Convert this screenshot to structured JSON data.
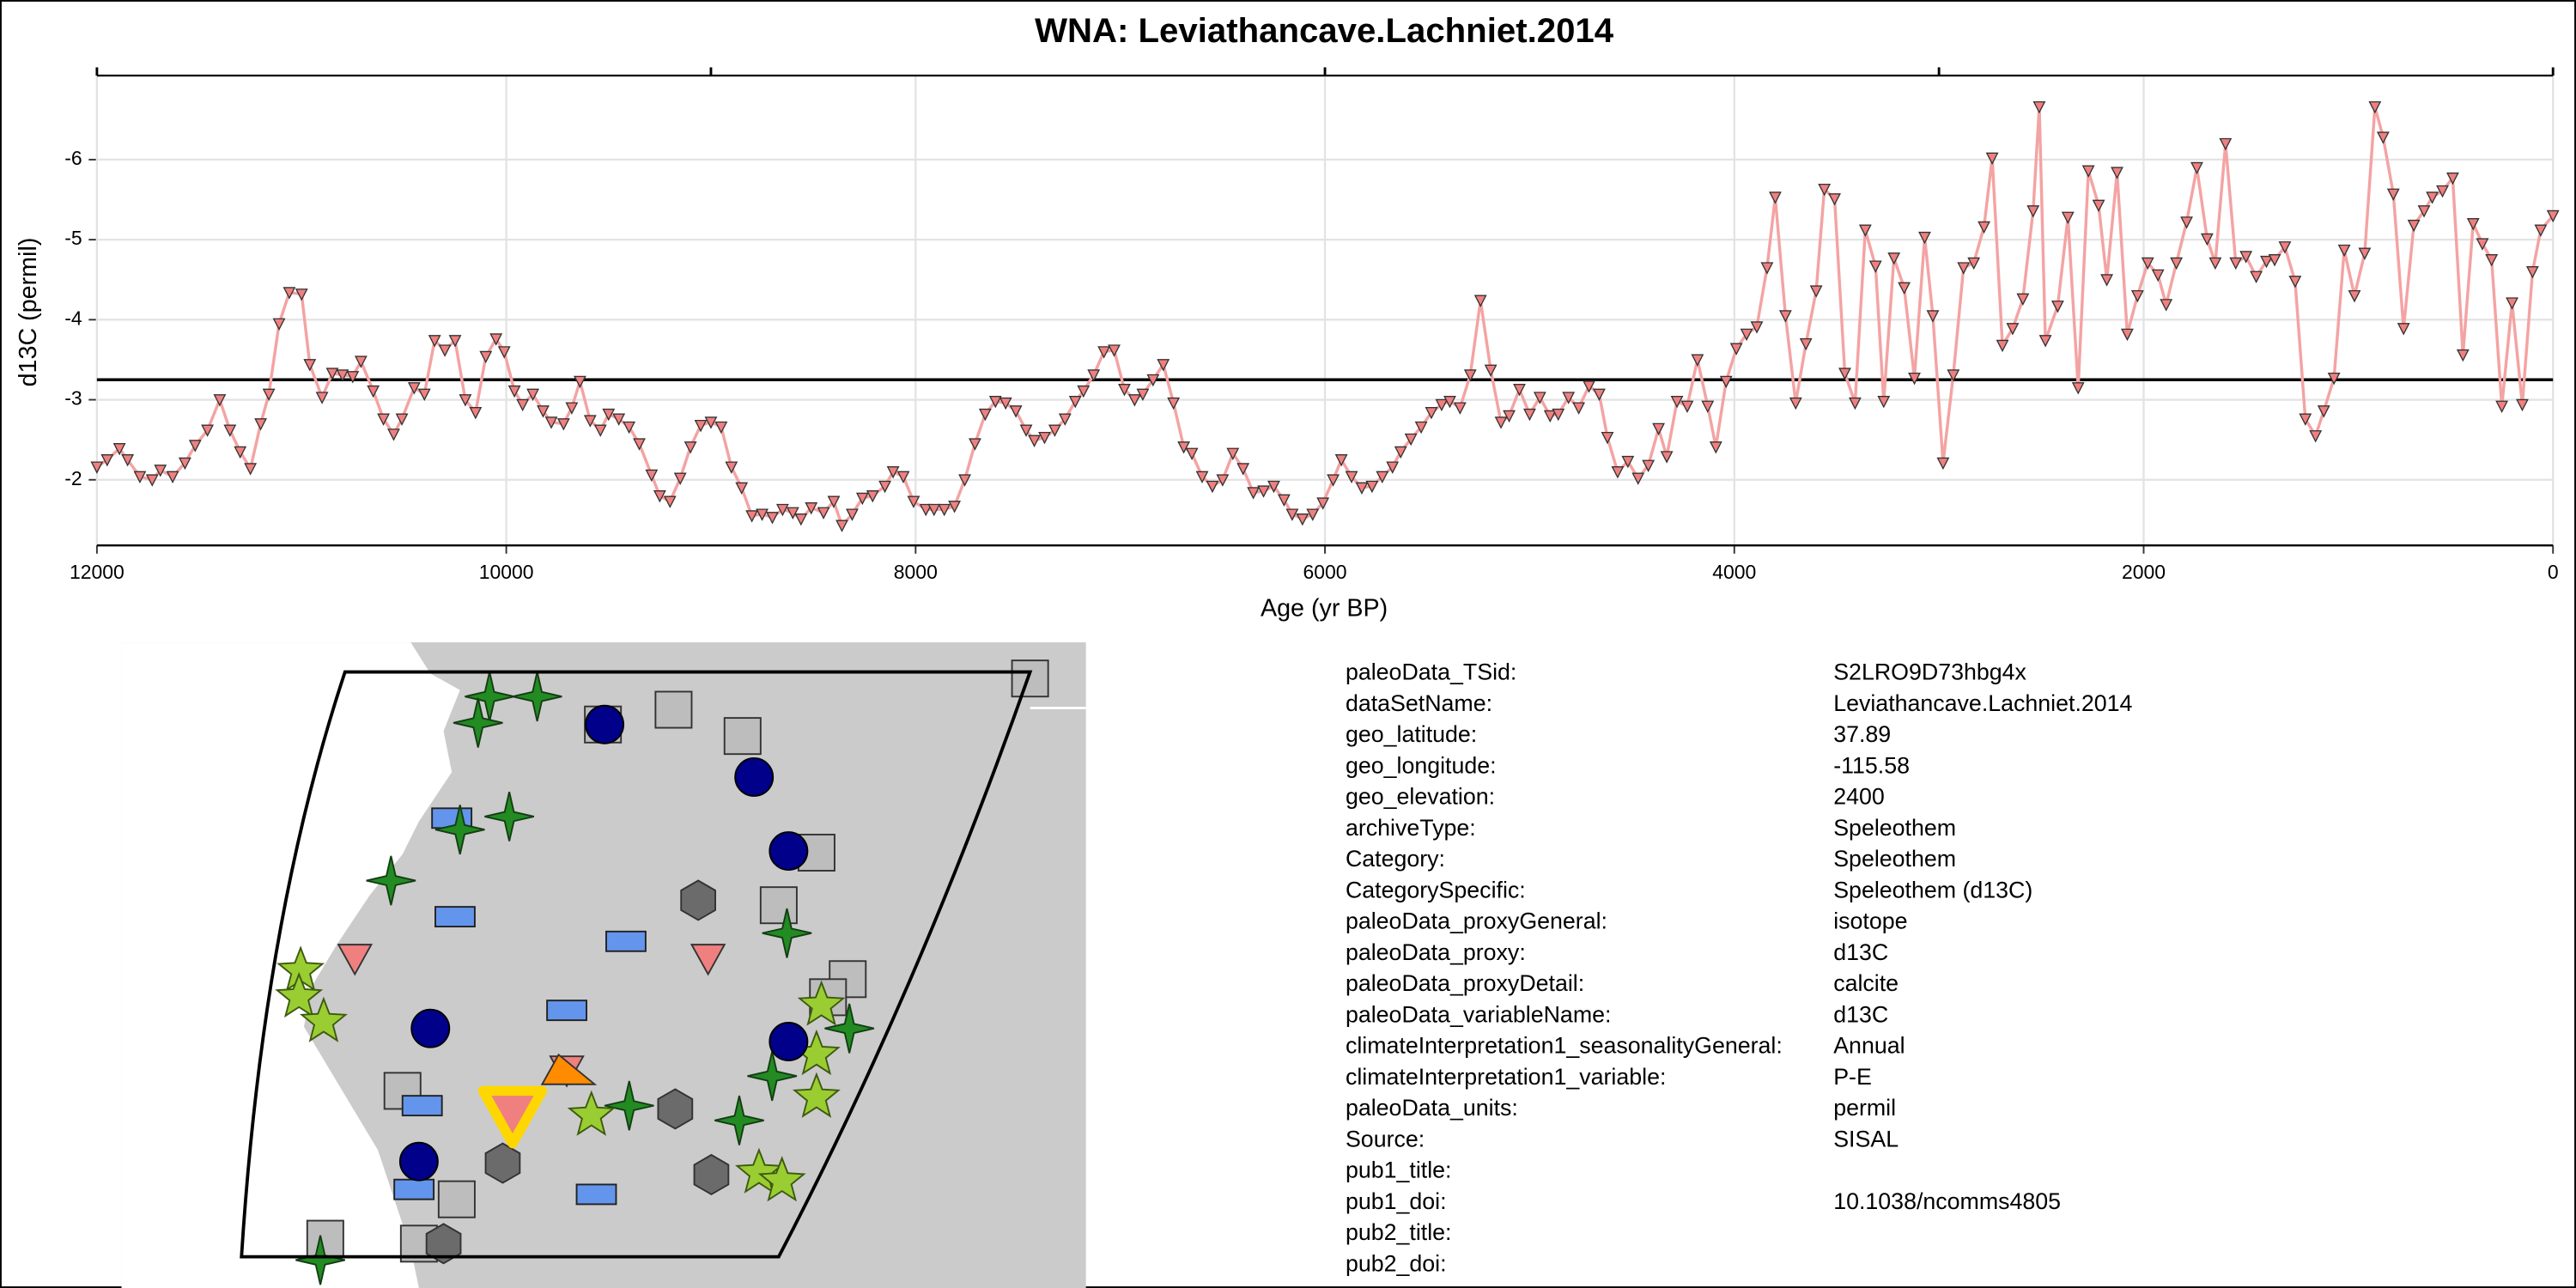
{
  "chart_data": {
    "type": "line",
    "title": "WNA: Leviathancave.Lachniet.2014",
    "x_label": "Age (yr BP)",
    "y_label": "d13C (permil)",
    "xlim": [
      12000,
      0
    ],
    "ylim": [
      -1.18,
      -7.05
    ],
    "xticks": [
      12000,
      10000,
      8000,
      6000,
      4000,
      2000,
      0
    ],
    "top_ticks": [
      12000,
      9000,
      6000,
      3000,
      0
    ],
    "yticks": [
      -6,
      -5,
      -4,
      -3,
      -2
    ],
    "grid": true,
    "hline": -3.25,
    "line_color": "#f4a3a3",
    "marker_color": "#f08080",
    "x": [
      12000,
      11950,
      11890,
      11850,
      11790,
      11730,
      11690,
      11630,
      11570,
      11520,
      11460,
      11400,
      11350,
      11300,
      11250,
      11200,
      11160,
      11110,
      11060,
      11000,
      10960,
      10900,
      10850,
      10800,
      10750,
      10710,
      10650,
      10600,
      10550,
      10510,
      10450,
      10400,
      10350,
      10300,
      10250,
      10200,
      10150,
      10100,
      10050,
      10010,
      9960,
      9920,
      9870,
      9820,
      9780,
      9720,
      9680,
      9640,
      9590,
      9540,
      9500,
      9450,
      9400,
      9350,
      9290,
      9250,
      9200,
      9150,
      9100,
      9050,
      9000,
      8950,
      8900,
      8850,
      8800,
      8750,
      8700,
      8650,
      8600,
      8560,
      8510,
      8450,
      8400,
      8360,
      8310,
      8260,
      8210,
      8150,
      8110,
      8060,
      8010,
      7950,
      7910,
      7860,
      7810,
      7760,
      7710,
      7660,
      7610,
      7560,
      7510,
      7460,
      7420,
      7370,
      7320,
      7270,
      7220,
      7180,
      7130,
      7080,
      7030,
      6980,
      6930,
      6890,
      6840,
      6790,
      6740,
      6690,
      6650,
      6600,
      6550,
      6500,
      6450,
      6400,
      6350,
      6300,
      6250,
      6200,
      6160,
      6110,
      6060,
      6010,
      5960,
      5920,
      5870,
      5820,
      5770,
      5720,
      5670,
      5630,
      5580,
      5530,
      5480,
      5430,
      5390,
      5340,
      5290,
      5240,
      5190,
      5140,
      5100,
      5050,
      5000,
      4950,
      4900,
      4860,
      4810,
      4760,
      4710,
      4660,
      4620,
      4570,
      4520,
      4470,
      4420,
      4370,
      4330,
      4280,
      4230,
      4180,
      4130,
      4090,
      4040,
      3990,
      3940,
      3890,
      3840,
      3800,
      3750,
      3700,
      3650,
      3600,
      3560,
      3510,
      3460,
      3410,
      3360,
      3310,
      3270,
      3220,
      3170,
      3120,
      3070,
      3030,
      2980,
      2930,
      2880,
      2830,
      2780,
      2740,
      2690,
      2640,
      2590,
      2540,
      2510,
      2480,
      2420,
      2370,
      2320,
      2270,
      2220,
      2180,
      2130,
      2080,
      2030,
      1980,
      1930,
      1890,
      1840,
      1790,
      1740,
      1690,
      1650,
      1600,
      1550,
      1500,
      1450,
      1400,
      1360,
      1310,
      1260,
      1210,
      1160,
      1120,
      1070,
      1020,
      970,
      920,
      870,
      830,
      780,
      730,
      680,
      630,
      590,
      540,
      490,
      440,
      390,
      345,
      300,
      250,
      200,
      150,
      100,
      60,
      0
    ],
    "values": [
      -2.16,
      -2.25,
      -2.39,
      -2.25,
      -2.04,
      -2.0,
      -2.12,
      -2.04,
      -2.21,
      -2.43,
      -2.62,
      -3.0,
      -2.62,
      -2.35,
      -2.14,
      -2.7,
      -3.07,
      -3.95,
      -4.34,
      -4.32,
      -3.44,
      -3.03,
      -3.33,
      -3.31,
      -3.29,
      -3.48,
      -3.11,
      -2.76,
      -2.57,
      -2.76,
      -3.15,
      -3.07,
      -3.74,
      -3.62,
      -3.74,
      -3.0,
      -2.84,
      -3.54,
      -3.76,
      -3.6,
      -3.11,
      -2.94,
      -3.07,
      -2.86,
      -2.72,
      -2.7,
      -2.9,
      -3.23,
      -2.74,
      -2.62,
      -2.82,
      -2.76,
      -2.66,
      -2.45,
      -2.06,
      -1.8,
      -1.73,
      -2.02,
      -2.41,
      -2.68,
      -2.72,
      -2.66,
      -2.16,
      -1.9,
      -1.55,
      -1.57,
      -1.53,
      -1.63,
      -1.59,
      -1.51,
      -1.65,
      -1.59,
      -1.73,
      -1.43,
      -1.57,
      -1.77,
      -1.8,
      -1.92,
      -2.1,
      -2.04,
      -1.73,
      -1.63,
      -1.63,
      -1.63,
      -1.67,
      -2.0,
      -2.45,
      -2.82,
      -2.98,
      -2.96,
      -2.86,
      -2.62,
      -2.49,
      -2.53,
      -2.62,
      -2.76,
      -2.98,
      -3.11,
      -3.31,
      -3.6,
      -3.62,
      -3.13,
      -3.0,
      -3.07,
      -3.25,
      -3.44,
      -2.96,
      -2.41,
      -2.33,
      -2.04,
      -1.92,
      -2.0,
      -2.33,
      -2.14,
      -1.84,
      -1.86,
      -1.92,
      -1.75,
      -1.57,
      -1.51,
      -1.57,
      -1.71,
      -2.0,
      -2.25,
      -2.04,
      -1.9,
      -1.92,
      -2.04,
      -2.16,
      -2.35,
      -2.51,
      -2.66,
      -2.84,
      -2.94,
      -2.98,
      -2.9,
      -3.31,
      -4.24,
      -3.37,
      -2.72,
      -2.8,
      -3.13,
      -2.82,
      -3.03,
      -2.8,
      -2.82,
      -3.03,
      -2.9,
      -3.17,
      -3.07,
      -2.53,
      -2.1,
      -2.23,
      -2.02,
      -2.18,
      -2.64,
      -2.29,
      -2.98,
      -2.92,
      -3.5,
      -2.92,
      -2.41,
      -3.23,
      -3.64,
      -3.82,
      -3.91,
      -4.65,
      -5.53,
      -4.05,
      -2.96,
      -3.7,
      -4.36,
      -5.63,
      -5.51,
      -3.33,
      -2.96,
      -5.12,
      -4.67,
      -2.98,
      -4.77,
      -4.4,
      -3.27,
      -5.03,
      -4.05,
      -2.21,
      -3.31,
      -4.65,
      -4.71,
      -5.16,
      -6.02,
      -3.68,
      -3.89,
      -4.26,
      -5.36,
      -6.66,
      -3.74,
      -4.17,
      -5.28,
      -3.15,
      -5.86,
      -5.43,
      -4.5,
      -5.84,
      -3.82,
      -4.3,
      -4.71,
      -4.56,
      -4.19,
      -4.71,
      -5.22,
      -5.9,
      -5.01,
      -4.71,
      -6.2,
      -4.71,
      -4.79,
      -4.54,
      -4.73,
      -4.75,
      -4.91,
      -4.48,
      -2.76,
      -2.55,
      -2.86,
      -3.27,
      -4.87,
      -4.3,
      -4.83,
      -6.66,
      -6.28,
      -5.57,
      -3.89,
      -5.18,
      -5.36,
      -5.53,
      -5.61,
      -5.77,
      -3.56,
      -5.2,
      -4.95,
      -4.75,
      -2.92,
      -4.21,
      -2.94,
      -4.6,
      -5.12,
      -5.3
    ]
  },
  "metadata": {
    "rows": [
      {
        "label": "paleoData_TSid:",
        "value": "S2LRO9D73hbg4x"
      },
      {
        "label": "dataSetName:",
        "value": "Leviathancave.Lachniet.2014"
      },
      {
        "label": "geo_latitude:",
        "value": 37.89
      },
      {
        "label": "geo_longitude:",
        "value": -115.58
      },
      {
        "label": "geo_elevation:",
        "value": 2400
      },
      {
        "label": "archiveType:",
        "value": "Speleothem"
      },
      {
        "label": "Category:",
        "value": "Speleothem"
      },
      {
        "label": "CategorySpecific:",
        "value": "Speleothem (d13C)"
      },
      {
        "label": "paleoData_proxyGeneral:",
        "value": "isotope"
      },
      {
        "label": "paleoData_proxy:",
        "value": "d13C"
      },
      {
        "label": "paleoData_proxyDetail:",
        "value": "calcite"
      },
      {
        "label": "paleoData_variableName:",
        "value": "d13C"
      },
      {
        "label": "climateInterpretation1_seasonalityGeneral:",
        "value": "Annual"
      },
      {
        "label": "climateInterpretation1_variable:",
        "value": "P-E"
      },
      {
        "label": "paleoData_units:",
        "value": "permil"
      },
      {
        "label": "Source:",
        "value": "SISAL"
      },
      {
        "label": "pub1_title:"
      },
      {
        "label": "pub1_doi:",
        "value": "10.1038/ncomms4805"
      },
      {
        "label": "pub2_title:"
      },
      {
        "label": "pub2_doi:"
      }
    ]
  }
}
